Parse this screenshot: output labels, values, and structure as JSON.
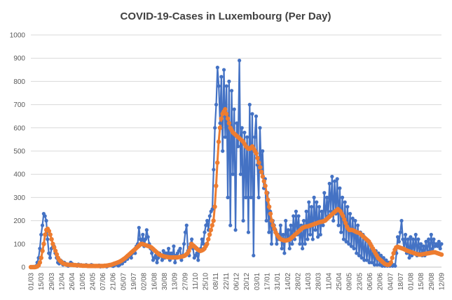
{
  "chart_data": {
    "type": "line",
    "title": "COVID-19-Cases in Luxembourg (Per Day)",
    "xlabel": "",
    "ylabel": "",
    "ylim": [
      0,
      1000
    ],
    "yticks": [
      0,
      100,
      200,
      300,
      400,
      500,
      600,
      700,
      800,
      900,
      1000
    ],
    "grid": true,
    "legend": "none",
    "colors": {
      "daily": "#4472C4",
      "average": "#ED7D31"
    },
    "x_tick_labels": [
      "01/03",
      "15/03",
      "29/03",
      "12/04",
      "26/04",
      "10/05",
      "24/05",
      "07/06",
      "21/06",
      "05/07",
      "19/07",
      "02/08",
      "16/08",
      "30/08",
      "13/09",
      "27/09",
      "11/10",
      "25/10",
      "08/11",
      "22/11",
      "06/12",
      "20/12",
      "03/01",
      "17/01",
      "31/01",
      "14/02",
      "28/02",
      "14/03",
      "28/03",
      "11/04",
      "25/04",
      "09/05",
      "23/05",
      "06/06",
      "20/06",
      "04/07",
      "18/07",
      "01/08",
      "15/08",
      "29/08",
      "12/09"
    ],
    "series": [
      {
        "name": "",
        "color": "#4472C4",
        "values": [
          0,
          0,
          2,
          0,
          5,
          20,
          40,
          80,
          140,
          180,
          230,
          220,
          200,
          120,
          60,
          40,
          80,
          100,
          90,
          60,
          40,
          20,
          15,
          30,
          25,
          10,
          20,
          15,
          10,
          5,
          10,
          20,
          15,
          10,
          8,
          10,
          5,
          12,
          8,
          10,
          5,
          8,
          6,
          10,
          5,
          4,
          6,
          10,
          8,
          5,
          3,
          6,
          4,
          8,
          2,
          5,
          3,
          6,
          4,
          2,
          5,
          8,
          10,
          6,
          4,
          8,
          12,
          10,
          6,
          10,
          20,
          15,
          30,
          25,
          40,
          35,
          50,
          45,
          40,
          60,
          70,
          60,
          90,
          100,
          170,
          120,
          100,
          140,
          90,
          120,
          160,
          130,
          100,
          80,
          60,
          30,
          40,
          50,
          20,
          40,
          60,
          50,
          30,
          70,
          40,
          60,
          50,
          80,
          30,
          60,
          40,
          90,
          20,
          50,
          60,
          70,
          80,
          30,
          50,
          100,
          150,
          180,
          70,
          50,
          100,
          120,
          80,
          40,
          50,
          60,
          30,
          70,
          80,
          120,
          100,
          150,
          180,
          200,
          160,
          220,
          240,
          250,
          420,
          600,
          700,
          860,
          780,
          620,
          820,
          500,
          850,
          560,
          780,
          300,
          800,
          180,
          760,
          400,
          680,
          160,
          620,
          520,
          890,
          400,
          600,
          200,
          580,
          300,
          560,
          150,
          700,
          300,
          660,
          50,
          560,
          650,
          440,
          300,
          600,
          420,
          500,
          340,
          380,
          200,
          320,
          150,
          240,
          100,
          200,
          180,
          160,
          100,
          140,
          120,
          180,
          80,
          140,
          60,
          200,
          120,
          160,
          80,
          180,
          100,
          220,
          120,
          240,
          140,
          220,
          100,
          180,
          80,
          200,
          100,
          240,
          120,
          280,
          140,
          260,
          120,
          300,
          160,
          280,
          130,
          260,
          140,
          240,
          180,
          320,
          200,
          300,
          220,
          360,
          240,
          390,
          200,
          370,
          230,
          380,
          180,
          340,
          150,
          300,
          120,
          280,
          110,
          260,
          100,
          230,
          90,
          210,
          80,
          200,
          60,
          180,
          50,
          150,
          40,
          140,
          30,
          120,
          30,
          110,
          20,
          100,
          20,
          80,
          10,
          70,
          10,
          60,
          10,
          50,
          5,
          40,
          5,
          30,
          5,
          20,
          5,
          15,
          5,
          10,
          5,
          60,
          130,
          110,
          150,
          200,
          120,
          80,
          140,
          60,
          120,
          40,
          130,
          50,
          120,
          60,
          140,
          50,
          120,
          60,
          100,
          50,
          90,
          50,
          110,
          60,
          120,
          70,
          140,
          80,
          120,
          90,
          100,
          90,
          110,
          80,
          100
        ]
      },
      {
        "name": "",
        "color": "#ED7D31",
        "values": [
          0,
          0,
          0,
          0,
          1,
          3,
          8,
          20,
          40,
          70,
          100,
          140,
          160,
          165,
          155,
          140,
          120,
          100,
          85,
          70,
          55,
          40,
          30,
          25,
          20,
          16,
          14,
          12,
          11,
          10,
          10,
          10,
          10,
          9,
          9,
          8,
          8,
          8,
          7,
          7,
          6,
          6,
          6,
          6,
          5,
          5,
          5,
          5,
          5,
          5,
          5,
          5,
          5,
          5,
          5,
          5,
          5,
          6,
          6,
          7,
          8,
          9,
          10,
          12,
          14,
          16,
          18,
          20,
          22,
          25,
          28,
          32,
          36,
          40,
          45,
          50,
          55,
          60,
          65,
          70,
          75,
          80,
          85,
          90,
          95,
          100,
          100,
          98,
          96,
          94,
          92,
          90,
          88,
          85,
          80,
          75,
          70,
          65,
          60,
          55,
          52,
          50,
          48,
          46,
          45,
          44,
          43,
          42,
          42,
          42,
          42,
          42,
          42,
          42,
          43,
          44,
          45,
          46,
          48,
          50,
          55,
          60,
          70,
          85,
          100,
          95,
          90,
          85,
          80,
          75,
          72,
          70,
          72,
          75,
          80,
          90,
          100,
          120,
          140,
          160,
          180,
          200,
          260,
          350,
          450,
          540,
          600,
          640,
          660,
          670,
          680,
          660,
          640,
          620,
          600,
          590,
          580,
          575,
          570,
          565,
          560,
          555,
          550,
          545,
          540,
          530,
          520,
          515,
          510,
          510,
          515,
          520,
          510,
          500,
          490,
          470,
          450,
          430,
          410,
          390,
          370,
          350,
          320,
          290,
          260,
          230,
          200,
          180,
          165,
          150,
          140,
          132,
          125,
          120,
          118,
          116,
          115,
          115,
          116,
          118,
          120,
          125,
          130,
          135,
          140,
          145,
          150,
          155,
          160,
          165,
          170,
          172,
          174,
          175,
          176,
          178,
          180,
          182,
          184,
          186,
          188,
          190,
          192,
          194,
          195,
          196,
          198,
          200,
          205,
          210,
          215,
          220,
          225,
          230,
          235,
          240,
          245,
          250,
          245,
          240,
          230,
          220,
          205,
          190,
          175,
          165,
          160,
          160,
          160,
          158,
          155,
          152,
          150,
          148,
          145,
          140,
          135,
          130,
          125,
          120,
          115,
          110,
          100,
          90,
          80,
          70,
          60,
          50,
          40,
          35,
          30,
          25,
          20,
          15,
          12,
          10,
          10,
          12,
          20,
          40,
          60,
          75,
          85,
          88,
          86,
          84,
          82,
          80,
          78,
          75,
          72,
          70,
          68,
          66,
          64,
          62,
          60,
          58,
          56,
          55,
          54,
          54,
          55,
          56,
          57,
          58,
          59,
          60,
          61,
          62,
          63,
          64,
          64,
          62,
          60,
          58,
          56,
          54
        ]
      }
    ]
  }
}
